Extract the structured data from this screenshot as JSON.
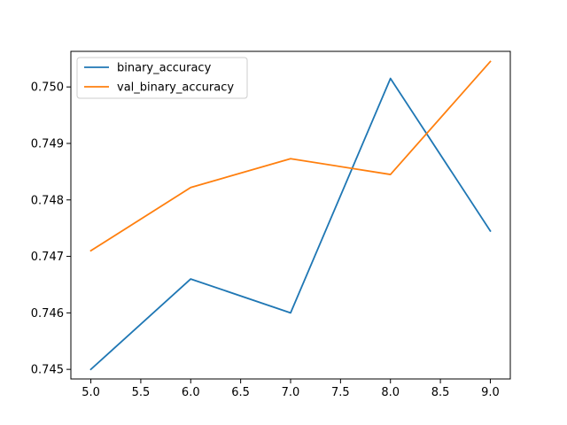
{
  "chart_data": {
    "type": "line",
    "title": "",
    "xlabel": "",
    "ylabel": "",
    "xlim": [
      4.8,
      9.2
    ],
    "ylim": [
      0.74483,
      0.75063
    ],
    "x_ticks": [
      5.0,
      5.5,
      6.0,
      6.5,
      7.0,
      7.5,
      8.0,
      8.5,
      9.0
    ],
    "x_tick_labels": [
      "5.0",
      "5.5",
      "6.0",
      "6.5",
      "7.0",
      "7.5",
      "8.0",
      "8.5",
      "9.0"
    ],
    "y_ticks": [
      0.745,
      0.746,
      0.747,
      0.748,
      0.749,
      0.75
    ],
    "y_tick_labels": [
      "0.745",
      "0.746",
      "0.747",
      "0.748",
      "0.749",
      "0.750"
    ],
    "grid": false,
    "legend_position": "upper-left",
    "x": [
      5,
      6,
      7,
      8,
      9
    ],
    "series": [
      {
        "name": "binary_accuracy",
        "color": "#1f77b4",
        "values": [
          0.745,
          0.7466,
          0.746,
          0.75015,
          0.74745
        ]
      },
      {
        "name": "val_binary_accuracy",
        "color": "#ff7f0e",
        "values": [
          0.7471,
          0.74822,
          0.74873,
          0.74845,
          0.75045
        ]
      }
    ]
  }
}
